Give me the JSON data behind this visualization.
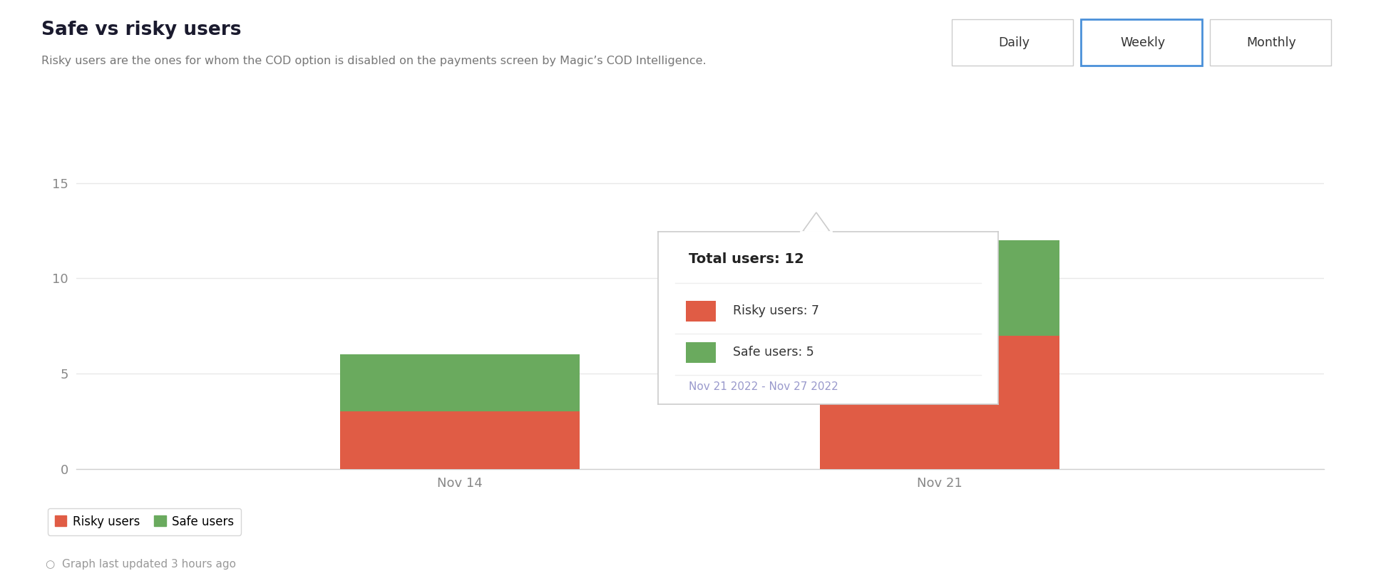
{
  "title": "Safe vs risky users",
  "subtitle": "Risky users are the ones for whom the COD option is disabled on the payments screen by Magic’s COD Intelligence.",
  "categories": [
    "Nov 14",
    "Nov 21"
  ],
  "risky_values": [
    3,
    7
  ],
  "safe_values": [
    3,
    5
  ],
  "risky_color": "#e05c45",
  "safe_color": "#6aaa5e",
  "ylim": [
    0,
    16
  ],
  "yticks": [
    0,
    5,
    10,
    15
  ],
  "background_color": "#ffffff",
  "plot_bg_color": "#ffffff",
  "grid_color": "#e8e8e8",
  "tab_labels": [
    "Daily",
    "Weekly",
    "Monthly"
  ],
  "active_tab": "Weekly",
  "active_tab_color": "#4a90d9",
  "legend_labels": [
    "Risky users",
    "Safe users"
  ],
  "footer_text": "Graph last updated 3 hours ago",
  "tooltip_total": "Total users: 12",
  "tooltip_risky": "Risky users: 7",
  "tooltip_safe": "Safe users: 5",
  "tooltip_date": "Nov 21 2022 - Nov 27 2022",
  "bar_width": 0.5
}
